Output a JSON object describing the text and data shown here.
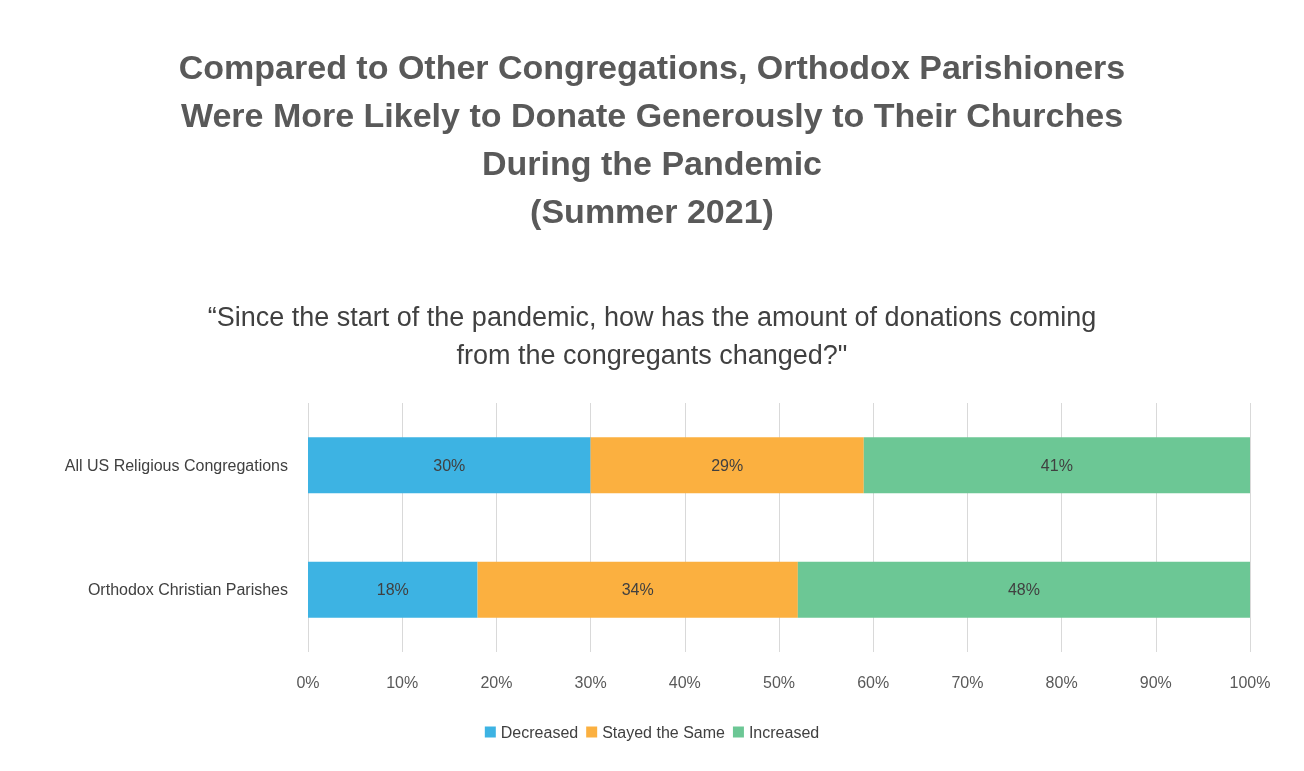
{
  "chart_data": {
    "type": "bar",
    "orientation": "horizontal",
    "stacked": true,
    "title": "Compared to Other Congregations, Orthodox Parishioners\nWere More Likely to Donate Generously to Their Churches\nDuring the Pandemic\n(Summer 2021)",
    "subtitle": "“Since the start of the pandemic, how has the amount of donations coming\nfrom the congregants changed?\"",
    "categories": [
      "All US Religious Congregations",
      "Orthodox Christian Parishes"
    ],
    "series": [
      {
        "name": "Decreased",
        "color": "#3db3e3",
        "values": [
          30,
          18
        ],
        "value_labels": [
          "30%",
          "18%"
        ]
      },
      {
        "name": "Stayed the Same",
        "color": "#fbb040",
        "values": [
          29,
          34
        ],
        "value_labels": [
          "29%",
          "34%"
        ]
      },
      {
        "name": "Increased",
        "color": "#6cc795",
        "values": [
          41,
          48
        ],
        "value_labels": [
          "41%",
          "48%"
        ]
      }
    ],
    "xlim": [
      0,
      100
    ],
    "xticks": [
      {
        "value": 0,
        "label": "0%"
      },
      {
        "value": 10,
        "label": "10%"
      },
      {
        "value": 20,
        "label": "20%"
      },
      {
        "value": 30,
        "label": "30%"
      },
      {
        "value": 40,
        "label": "40%"
      },
      {
        "value": 50,
        "label": "50%"
      },
      {
        "value": 60,
        "label": "60%"
      },
      {
        "value": 70,
        "label": "70%"
      },
      {
        "value": 80,
        "label": "80%"
      },
      {
        "value": 90,
        "label": "90%"
      },
      {
        "value": 100,
        "label": "100%"
      }
    ],
    "grid": "x",
    "legend": "bottom"
  }
}
